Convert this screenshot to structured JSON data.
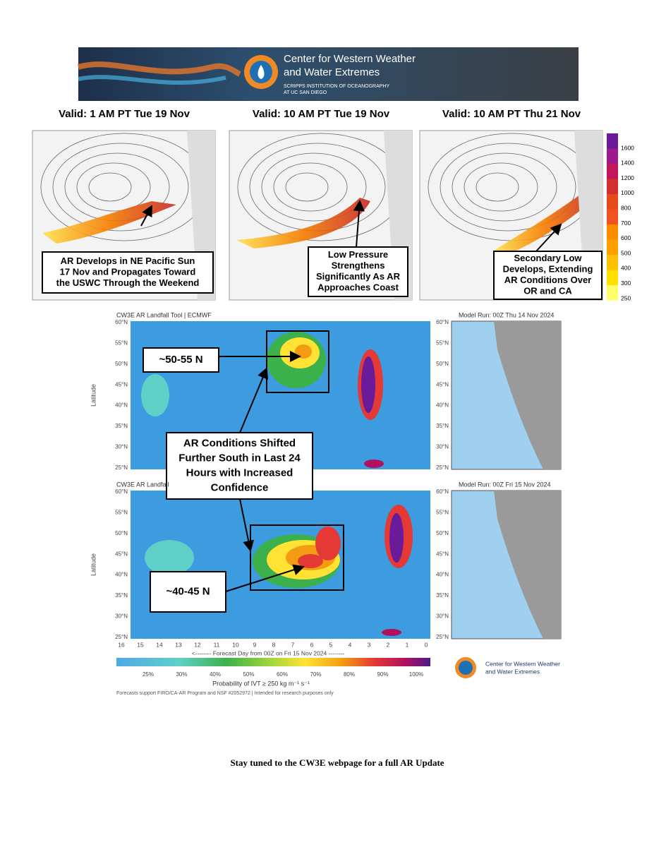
{
  "banner": {
    "title": [
      "Center for Western Weather",
      "and Water Extremes"
    ],
    "subtitle": [
      "SCRIPPS INSTITUTION OF OCEANOGRAPHY",
      "AT UC SAN DIEGO"
    ]
  },
  "forecast_maps": {
    "panels": [
      {
        "title": "Valid: 1 AM PT Tue 19 Nov",
        "annotation": [
          "AR Develops in NE Pacific Sun",
          "17 Nov and Propagates Toward",
          "the USWC Through the Weekend"
        ]
      },
      {
        "title": "Valid: 10 AM PT Tue 19 Nov",
        "annotation": [
          "Low Pressure",
          "Strengthens",
          "Significantly As AR",
          "Approaches Coast"
        ]
      },
      {
        "title": "Valid: 10 AM PT Thu 21 Nov",
        "annotation": [
          "Secondary Low",
          "Develops, Extending",
          "AR Conditions Over",
          "OR and CA"
        ]
      }
    ],
    "colorbar_labels": [
      "1600",
      "1400",
      "1200",
      "1000",
      "800",
      "700",
      "600",
      "500",
      "400",
      "300",
      "250"
    ]
  },
  "landfall_tool": {
    "panels": [
      {
        "title": "CW3E AR Landfall Tool | ECMWF",
        "model_run": "Model Run: 00Z Thu 14 Nov 2024"
      },
      {
        "title": "CW3E AR Landfall",
        "model_run": "Model Run: 00Z Fri 15 Nov 2024"
      }
    ],
    "latitude_labels": [
      "60°N",
      "55°N",
      "50°N",
      "45°N",
      "40°N",
      "35°N",
      "30°N",
      "25°N"
    ],
    "y_axis_label": "Latitude",
    "day_labels": [
      "16",
      "15",
      "14",
      "13",
      "12",
      "11",
      "10",
      "9",
      "8",
      "7",
      "6",
      "5",
      "4",
      "3",
      "2",
      "1",
      "0"
    ],
    "x_axis_label": "<-------- Forecast Day from 00Z on Fri 15 Nov 2024 --------",
    "annotations": [
      [
        "~50-55 N"
      ],
      [
        "AR Conditions Shifted",
        "Further South in Last 24",
        "Hours with Increased",
        "Confidence"
      ],
      [
        "~40-45 N"
      ]
    ],
    "colorbar_labels": [
      "25%",
      "30%",
      "40%",
      "50%",
      "60%",
      "70%",
      "80%",
      "90%",
      "100%"
    ],
    "colorbar_title": "Probability of IVT ≥ 250 kg m⁻¹ s⁻¹",
    "footnote": "Forecasts support FIRO/CA-AR Program and NSF #2052972 | Intended for research purposes only",
    "logo_text": [
      "Center for Western Weather",
      "and Water Extremes"
    ]
  },
  "footer": "Stay tuned to the CW3E webpage for a full AR Update"
}
